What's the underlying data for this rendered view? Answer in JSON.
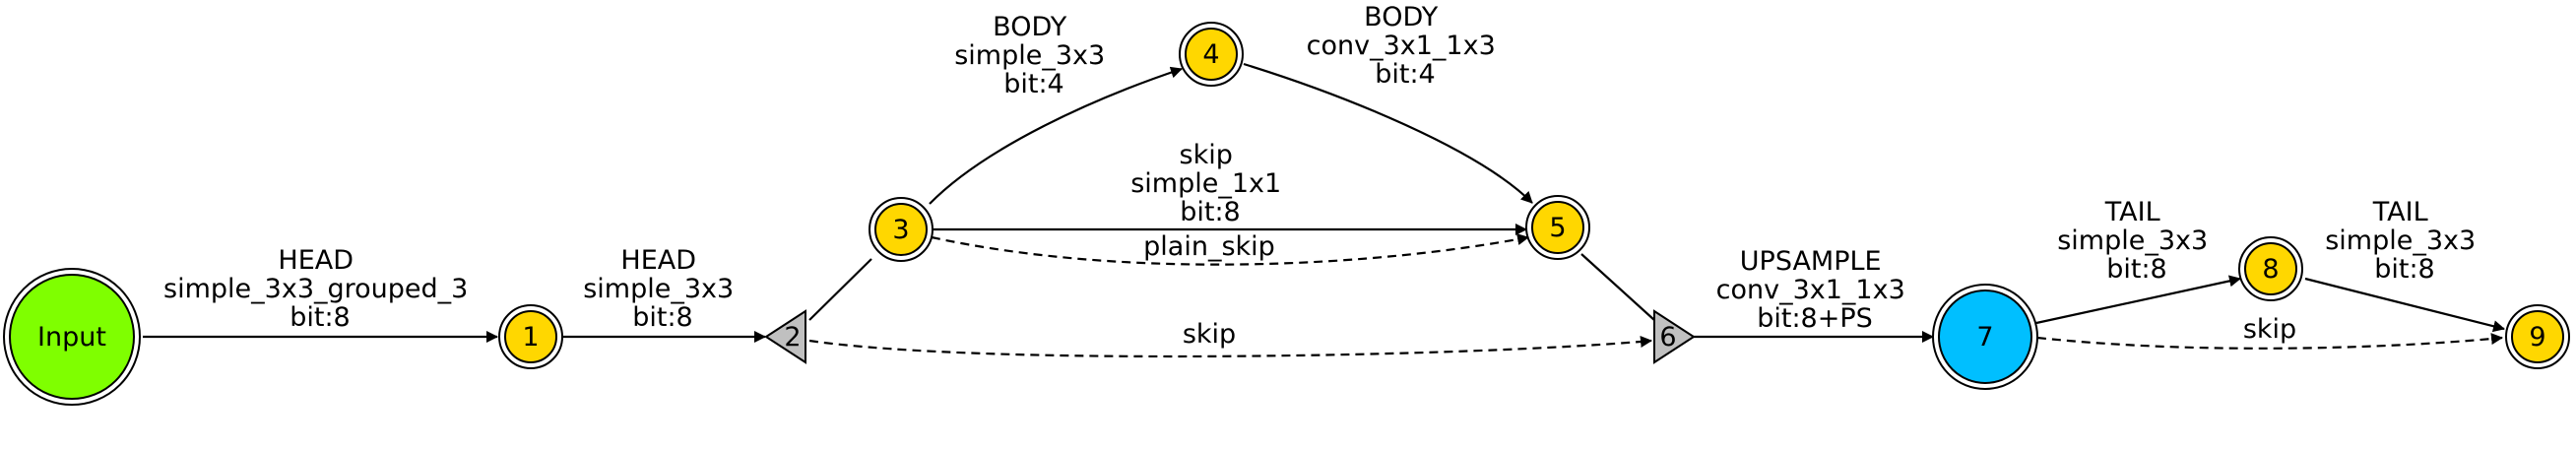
{
  "colors": {
    "input_fill": "#7fff00",
    "node_fill": "#ffd700",
    "upsample_fill": "#00bfff",
    "junction_fill": "#c0c0c0",
    "stroke": "#000000",
    "background": "#ffffff"
  },
  "nodes": {
    "input": "Input",
    "n1": "1",
    "n2": "2",
    "n3": "3",
    "n4": "4",
    "n5": "5",
    "n6": "6",
    "n7": "7",
    "n8": "8",
    "n9": "9"
  },
  "edges": {
    "input_1": [
      "HEAD",
      "simple_3x3_grouped_3",
      "bit:8"
    ],
    "e1_2": [
      "HEAD",
      "simple_3x3",
      "bit:8"
    ],
    "e3_4": [
      "BODY",
      "simple_3x3",
      "bit:4"
    ],
    "e4_5": [
      "BODY",
      "conv_3x1_1x3",
      "bit:4"
    ],
    "e3_5": [
      "skip",
      "simple_1x1",
      "bit:8"
    ],
    "e3_5_dashed": [
      "plain_skip"
    ],
    "e2_6": [
      "skip"
    ],
    "e6_7": [
      "UPSAMPLE",
      "conv_3x1_1x3",
      "bit:8+PS"
    ],
    "e7_8": [
      "TAIL",
      "simple_3x3",
      "bit:8"
    ],
    "e8_9": [
      "TAIL",
      "simple_3x3",
      "bit:8"
    ],
    "e7_9": [
      "skip"
    ]
  }
}
